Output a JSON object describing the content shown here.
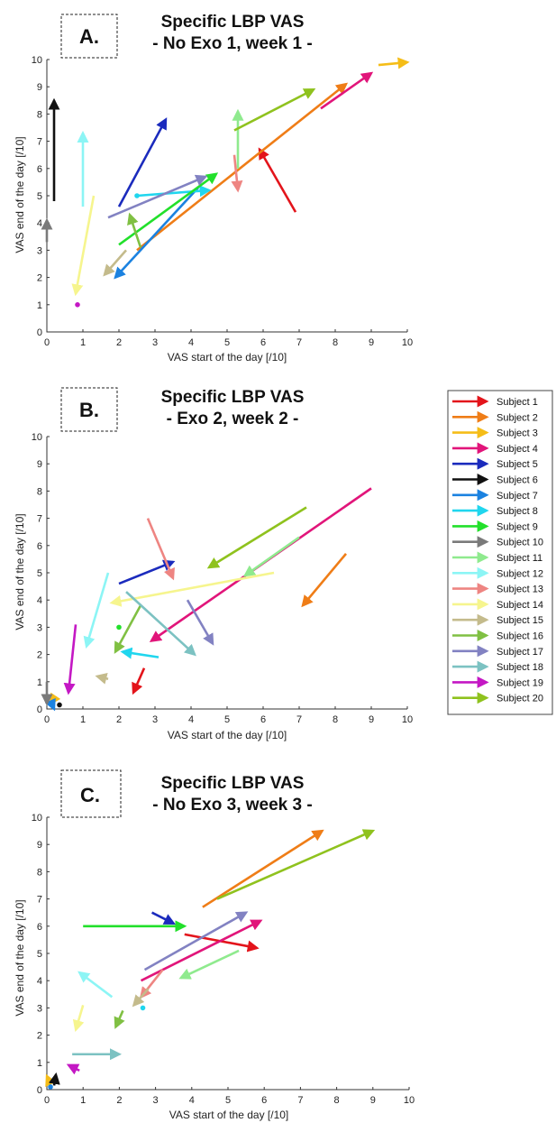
{
  "legend": {
    "entries": [
      {
        "name": "Subject 1",
        "color": "#e3141b"
      },
      {
        "name": "Subject 2",
        "color": "#ef7d17"
      },
      {
        "name": "Subject 3",
        "color": "#f5bd18"
      },
      {
        "name": "Subject 4",
        "color": "#e1157a"
      },
      {
        "name": "Subject 5",
        "color": "#1b2bbd"
      },
      {
        "name": "Subject 6",
        "color": "#111111"
      },
      {
        "name": "Subject 7",
        "color": "#1b82e0"
      },
      {
        "name": "Subject 8",
        "color": "#20d6ee"
      },
      {
        "name": "Subject 9",
        "color": "#22e02b"
      },
      {
        "name": "Subject 10",
        "color": "#7a7a7a"
      },
      {
        "name": "Subject 11",
        "color": "#8fea8e"
      },
      {
        "name": "Subject 12",
        "color": "#8cf5f5"
      },
      {
        "name": "Subject 13",
        "color": "#ee8582"
      },
      {
        "name": "Subject 14",
        "color": "#f6f58e"
      },
      {
        "name": "Subject 15",
        "color": "#c4bb8c"
      },
      {
        "name": "Subject 16",
        "color": "#80c043"
      },
      {
        "name": "Subject 17",
        "color": "#8282c2"
      },
      {
        "name": "Subject 18",
        "color": "#7cc2c2"
      },
      {
        "name": "Subject 19",
        "color": "#c418c4"
      },
      {
        "name": "Subject 20",
        "color": "#8fc21e"
      }
    ]
  },
  "chart_data": [
    {
      "type": "arrows",
      "panel_label": "A.",
      "title": "Specific LBP VAS",
      "subtitle": "- No Exo 1, week 1 -",
      "xlabel": "VAS start of the day [/10]",
      "ylabel": "VAS end of the day [/10]",
      "xlim": [
        0,
        10
      ],
      "ylim": [
        0,
        10
      ],
      "ticks": [
        "0",
        "1",
        "2",
        "3",
        "4",
        "5",
        "6",
        "7",
        "8",
        "9",
        "10"
      ],
      "arrows": [
        {
          "subject": "Subject 1",
          "from": [
            6.9,
            4.4
          ],
          "to": [
            5.9,
            6.7
          ]
        },
        {
          "subject": "Subject 2",
          "from": [
            2.5,
            3.0
          ],
          "to": [
            8.3,
            9.1
          ]
        },
        {
          "subject": "Subject 3",
          "from": [
            9.2,
            9.8
          ],
          "to": [
            10.0,
            9.9
          ]
        },
        {
          "subject": "Subject 4",
          "from": [
            7.6,
            8.2
          ],
          "to": [
            9.0,
            9.5
          ]
        },
        {
          "subject": "Subject 5",
          "from": [
            2.0,
            4.6
          ],
          "to": [
            3.3,
            7.8
          ]
        },
        {
          "subject": "Subject 6",
          "from": [
            0.2,
            4.8
          ],
          "to": [
            0.2,
            8.5
          ]
        },
        {
          "subject": "Subject 7",
          "from": [
            4.2,
            5.3
          ],
          "to": [
            1.9,
            2.0
          ]
        },
        {
          "subject": "Subject 8",
          "from": [
            2.5,
            5.0
          ],
          "to": [
            4.5,
            5.2
          ]
        },
        {
          "subject": "Subject 9",
          "from": [
            2.0,
            3.2
          ],
          "to": [
            4.7,
            5.8
          ]
        },
        {
          "subject": "Subject 10",
          "from": [
            0.0,
            3.3
          ],
          "to": [
            0.0,
            4.1
          ]
        },
        {
          "subject": "Subject 11",
          "from": [
            5.3,
            6.0
          ],
          "to": [
            5.3,
            8.1
          ]
        },
        {
          "subject": "Subject 12",
          "from": [
            1.0,
            4.6
          ],
          "to": [
            1.0,
            7.3
          ]
        },
        {
          "subject": "Subject 13",
          "from": [
            5.2,
            6.5
          ],
          "to": [
            5.3,
            5.2
          ]
        },
        {
          "subject": "Subject 14",
          "from": [
            1.3,
            5.0
          ],
          "to": [
            0.8,
            1.4
          ]
        },
        {
          "subject": "Subject 15",
          "from": [
            2.2,
            3.0
          ],
          "to": [
            1.6,
            2.1
          ]
        },
        {
          "subject": "Subject 16",
          "from": [
            2.6,
            3.1
          ],
          "to": [
            2.3,
            4.3
          ]
        },
        {
          "subject": "Subject 17",
          "from": [
            1.7,
            4.2
          ],
          "to": [
            4.4,
            5.7
          ]
        },
        {
          "subject": "Subject 20",
          "from": [
            5.2,
            7.4
          ],
          "to": [
            7.4,
            8.9
          ]
        }
      ],
      "points": [
        {
          "subject": "Subject 19",
          "x": 0.85,
          "y": 1.0
        },
        {
          "subject": "Subject 8",
          "x": 2.5,
          "y": 5.0
        }
      ]
    },
    {
      "type": "arrows",
      "panel_label": "B.",
      "title": "Specific LBP VAS",
      "subtitle": "- Exo 2, week 2 -",
      "xlabel": "VAS start of the day [/10]",
      "ylabel": "VAS end of the day [/10]",
      "xlim": [
        0,
        10
      ],
      "ylim": [
        0,
        10
      ],
      "ticks": [
        "0",
        "1",
        "2",
        "3",
        "4",
        "5",
        "6",
        "7",
        "8",
        "9",
        "10"
      ],
      "arrows": [
        {
          "subject": "Subject 1",
          "from": [
            2.7,
            1.5
          ],
          "to": [
            2.4,
            0.6
          ]
        },
        {
          "subject": "Subject 2",
          "from": [
            8.3,
            5.7
          ],
          "to": [
            7.1,
            3.8
          ]
        },
        {
          "subject": "Subject 3",
          "from": [
            0.2,
            0.4
          ],
          "to": [
            0.1,
            0.2
          ]
        },
        {
          "subject": "Subject 4",
          "from": [
            9.0,
            8.1
          ],
          "to": [
            2.9,
            2.5
          ]
        },
        {
          "subject": "Subject 5",
          "from": [
            2.0,
            4.6
          ],
          "to": [
            3.5,
            5.4
          ]
        },
        {
          "subject": "Subject 7",
          "from": [
            0.1,
            0.3
          ],
          "to": [
            0.2,
            0.0
          ]
        },
        {
          "subject": "Subject 8",
          "from": [
            3.1,
            1.9
          ],
          "to": [
            2.1,
            2.1
          ]
        },
        {
          "subject": "Subject 10",
          "from": [
            0.0,
            1.0
          ],
          "to": [
            0.0,
            0.2
          ]
        },
        {
          "subject": "Subject 11",
          "from": [
            7.0,
            6.3
          ],
          "to": [
            5.5,
            4.9
          ]
        },
        {
          "subject": "Subject 12",
          "from": [
            1.7,
            5.0
          ],
          "to": [
            1.1,
            2.3
          ]
        },
        {
          "subject": "Subject 13",
          "from": [
            2.8,
            7.0
          ],
          "to": [
            3.5,
            4.8
          ]
        },
        {
          "subject": "Subject 14",
          "from": [
            6.3,
            5.0
          ],
          "to": [
            1.8,
            3.9
          ]
        },
        {
          "subject": "Subject 15",
          "from": [
            1.7,
            1.1
          ],
          "to": [
            1.4,
            1.2
          ]
        },
        {
          "subject": "Subject 16",
          "from": [
            2.6,
            3.8
          ],
          "to": [
            1.9,
            2.1
          ]
        },
        {
          "subject": "Subject 17",
          "from": [
            3.9,
            4.0
          ],
          "to": [
            4.6,
            2.4
          ]
        },
        {
          "subject": "Subject 18",
          "from": [
            2.2,
            4.3
          ],
          "to": [
            4.1,
            2.0
          ]
        },
        {
          "subject": "Subject 19",
          "from": [
            0.8,
            3.1
          ],
          "to": [
            0.6,
            0.6
          ]
        },
        {
          "subject": "Subject 20",
          "from": [
            7.2,
            7.4
          ],
          "to": [
            4.5,
            5.2
          ]
        }
      ],
      "points": [
        {
          "subject": "Subject 9",
          "x": 2.0,
          "y": 3.0
        },
        {
          "subject": "Subject 6",
          "x": 0.35,
          "y": 0.15
        }
      ]
    },
    {
      "type": "arrows",
      "panel_label": "C.",
      "title": "Specific LBP VAS",
      "subtitle": "- No Exo 3, week 3 -",
      "xlabel": "VAS start of the day [/10]",
      "ylabel": "VAS end of the day [/10]",
      "xlim": [
        0,
        10
      ],
      "ylim": [
        0,
        10
      ],
      "ticks": [
        "0",
        "1",
        "2",
        "3",
        "4",
        "5",
        "6",
        "7",
        "8",
        "9",
        "10"
      ],
      "arrows": [
        {
          "subject": "Subject 1",
          "from": [
            3.8,
            5.7
          ],
          "to": [
            5.8,
            5.2
          ]
        },
        {
          "subject": "Subject 2",
          "from": [
            4.3,
            6.7
          ],
          "to": [
            7.6,
            9.5
          ]
        },
        {
          "subject": "Subject 3",
          "from": [
            0.1,
            0.2
          ],
          "to": [
            0.0,
            0.5
          ]
        },
        {
          "subject": "Subject 4",
          "from": [
            2.6,
            4.0
          ],
          "to": [
            5.9,
            6.2
          ]
        },
        {
          "subject": "Subject 5",
          "from": [
            2.9,
            6.5
          ],
          "to": [
            3.5,
            6.1
          ]
        },
        {
          "subject": "Subject 6",
          "from": [
            0.2,
            0.15
          ],
          "to": [
            0.25,
            0.55
          ]
        },
        {
          "subject": "Subject 9",
          "from": [
            1.0,
            6.0
          ],
          "to": [
            3.8,
            6.0
          ]
        },
        {
          "subject": "Subject 11",
          "from": [
            5.3,
            5.1
          ],
          "to": [
            3.7,
            4.1
          ]
        },
        {
          "subject": "Subject 12",
          "from": [
            1.8,
            3.4
          ],
          "to": [
            0.9,
            4.3
          ]
        },
        {
          "subject": "Subject 13",
          "from": [
            3.2,
            4.4
          ],
          "to": [
            2.6,
            3.4
          ]
        },
        {
          "subject": "Subject 14",
          "from": [
            1.0,
            3.1
          ],
          "to": [
            0.8,
            2.2
          ]
        },
        {
          "subject": "Subject 15",
          "from": [
            2.8,
            3.7
          ],
          "to": [
            2.4,
            3.1
          ]
        },
        {
          "subject": "Subject 16",
          "from": [
            2.1,
            2.9
          ],
          "to": [
            1.9,
            2.3
          ]
        },
        {
          "subject": "Subject 17",
          "from": [
            2.7,
            4.4
          ],
          "to": [
            5.5,
            6.5
          ]
        },
        {
          "subject": "Subject 18",
          "from": [
            0.7,
            1.3
          ],
          "to": [
            2.0,
            1.3
          ]
        },
        {
          "subject": "Subject 19",
          "from": [
            0.9,
            0.7
          ],
          "to": [
            0.6,
            0.9
          ]
        },
        {
          "subject": "Subject 20",
          "from": [
            4.7,
            7.0
          ],
          "to": [
            9.0,
            9.5
          ]
        }
      ],
      "points": [
        {
          "subject": "Subject 8",
          "x": 2.65,
          "y": 3.0
        },
        {
          "subject": "Subject 7",
          "x": 0.1,
          "y": 0.1
        }
      ]
    }
  ]
}
